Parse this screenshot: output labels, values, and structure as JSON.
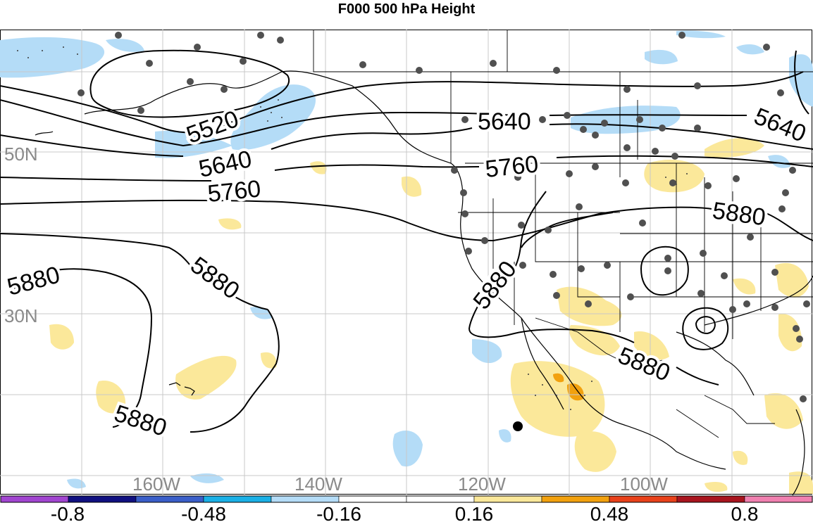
{
  "title": "F000 500 hPa Height",
  "map": {
    "lat_labels": [
      "50N",
      "30N"
    ],
    "lon_labels": [
      "160W",
      "140W",
      "120W",
      "100W"
    ],
    "contour_labels": [
      "5520",
      "5640",
      "5760",
      "5640",
      "5760",
      "5640",
      "5880",
      "5880",
      "5880",
      "5880",
      "5880",
      "5880"
    ],
    "colors": {
      "light_blue": "#b4dcf7",
      "light_yellow": "#fbe89a",
      "orange": "#f2a10e",
      "contour": "#000000",
      "station_dot": "#505050",
      "grid": "#bdbdbd"
    }
  },
  "colorbar": {
    "colors": [
      "#a145d0",
      "#101080",
      "#3a5ec8",
      "#1ab0e6",
      "#b4dcf7",
      "#ffffff",
      "#ffffff",
      "#fbe89a",
      "#f2a10e",
      "#e8411a",
      "#a8141e",
      "#f080b0"
    ],
    "tick_labels": [
      "-0.8",
      "-0.48",
      "-0.16",
      "0.16",
      "0.48",
      "0.8"
    ]
  }
}
